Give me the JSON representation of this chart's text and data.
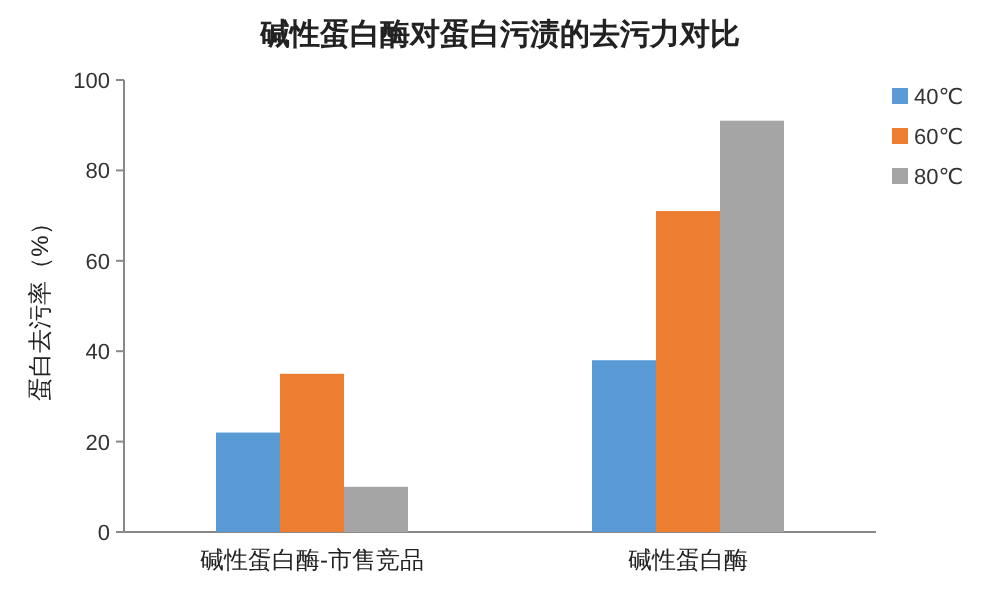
{
  "chart_data": {
    "type": "bar",
    "title": "碱性蛋白酶对蛋白污渍的去污力对比",
    "ylabel": "蛋白去污率（%）",
    "categories": [
      "碱性蛋白酶-市售竞品",
      "碱性蛋白酶"
    ],
    "series": [
      {
        "name": "40℃",
        "color": "#5b9bd5",
        "values": [
          22,
          38
        ]
      },
      {
        "name": "60℃",
        "color": "#ed7d31",
        "values": [
          35,
          71
        ]
      },
      {
        "name": "80℃",
        "color": "#a5a5a5",
        "values": [
          10,
          91
        ]
      }
    ],
    "ylim": [
      0,
      100
    ],
    "yticks": [
      0,
      20,
      40,
      60,
      80,
      100
    ],
    "legend": "top right"
  }
}
